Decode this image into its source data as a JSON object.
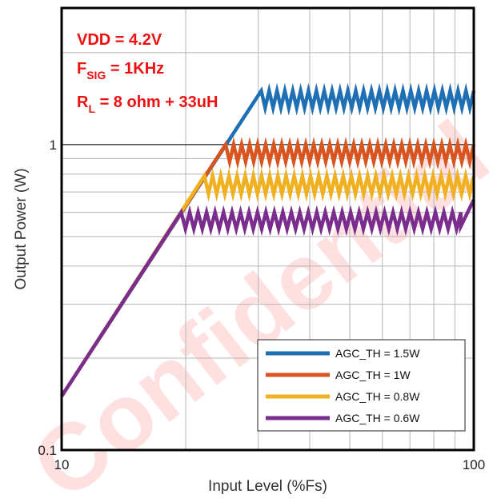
{
  "chart_data": {
    "type": "line",
    "xlabel": "Input Level (%Fs)",
    "ylabel": "Output Power (W)",
    "x_scale": "log",
    "y_scale": "log",
    "xlim": [
      10,
      100
    ],
    "ylim": [
      0.1,
      2.8
    ],
    "x_ticks": [
      {
        "value": 10,
        "label": "10"
      },
      {
        "value": 100,
        "label": "100"
      }
    ],
    "y_ticks": [
      {
        "value": 0.1,
        "label": "0.1"
      },
      {
        "value": 1,
        "label": "1"
      }
    ],
    "grid": true,
    "legend_position": "bottom-right",
    "annotations": [
      {
        "lines": [
          [
            {
              "text": "VDD = 4.2V",
              "sub": false
            }
          ],
          [
            {
              "text": "F",
              "sub": false
            },
            {
              "text": "SIG",
              "sub": true
            },
            {
              "text": " = 1KHz",
              "sub": false
            }
          ],
          [
            {
              "text": "R",
              "sub": false
            },
            {
              "text": "L",
              "sub": true
            },
            {
              "text": " = 8 ohm + 33uH",
              "sub": false
            }
          ]
        ],
        "color": "#ee1111",
        "position": "top-left"
      }
    ],
    "watermark": "Confidential",
    "series": [
      {
        "name": "AGC_TH = 1.5W",
        "color": "#1f6fb5",
        "ramp": [
          [
            10,
            0.15
          ],
          [
            30.5,
            1.5
          ]
        ],
        "limit": 1.5,
        "ripple_hi": 1.5,
        "ripple_lo": 1.32,
        "ripple_x": [
          30.5,
          100
        ],
        "ripple_teeth": 27
      },
      {
        "name": "AGC_TH = 1W",
        "color": "#d9541e",
        "ramp": [
          [
            10,
            0.15
          ],
          [
            25,
            1.0
          ]
        ],
        "limit": 1.0,
        "ripple_hi": 1.0,
        "ripple_lo": 0.88,
        "ripple_x": [
          25,
          100
        ],
        "ripple_teeth": 31
      },
      {
        "name": "AGC_TH = 0.8W",
        "color": "#f0b01f",
        "ramp": [
          [
            10,
            0.15
          ],
          [
            22.2,
            0.79
          ]
        ],
        "limit": 0.79,
        "ripple_hi": 0.79,
        "ripple_lo": 0.69,
        "ripple_x": [
          22.2,
          100
        ],
        "ripple_teeth": 33
      },
      {
        "name": "AGC_TH = 0.6W",
        "color": "#7b2d8e",
        "ramp": [
          [
            10,
            0.15
          ],
          [
            19.5,
            0.6
          ]
        ],
        "limit": 0.6,
        "ripple_hi": 0.6,
        "ripple_lo": 0.53,
        "ripple_x": [
          19.5,
          93
        ],
        "ripple_teeth": 33,
        "tail": [
          [
            93,
            0.54
          ],
          [
            100,
            0.66
          ]
        ]
      }
    ]
  }
}
